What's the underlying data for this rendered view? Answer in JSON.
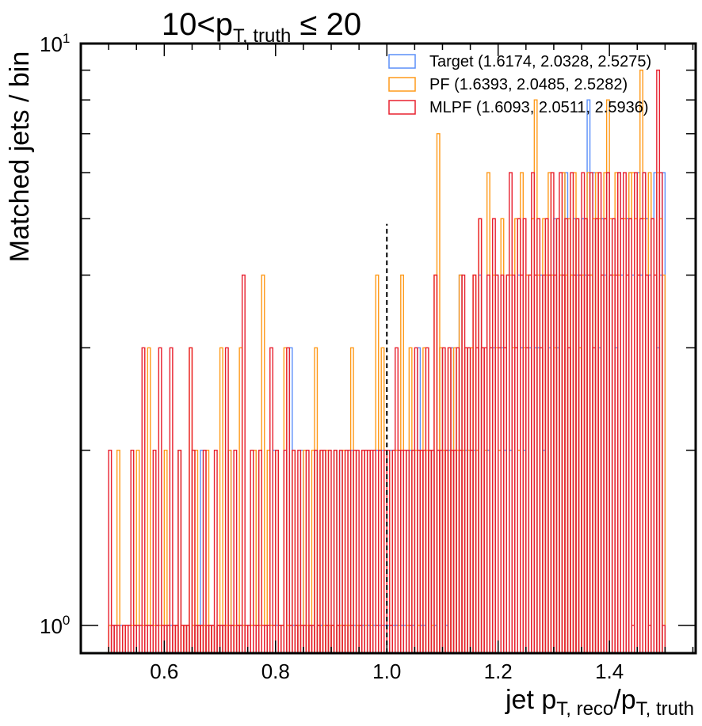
{
  "chart_data": {
    "type": "histogram-step",
    "title": {
      "prefix": "10<p",
      "sub": "T, truth",
      "suffix": " ≤ 20"
    },
    "xlabel": {
      "prefix": "jet p",
      "sub1": "T, reco",
      "mid": "/p",
      "sub2": "T, truth"
    },
    "ylabel": "Matched jets / bin",
    "xlim": [
      0.45,
      1.555
    ],
    "ylim": [
      0.896,
      10
    ],
    "yscale": "log",
    "x_ticks": [
      {
        "value": 0.6,
        "label": "0.6"
      },
      {
        "value": 0.8,
        "label": "0.8"
      },
      {
        "value": 1.0,
        "label": "1.0"
      },
      {
        "value": 1.2,
        "label": "1.2"
      },
      {
        "value": 1.4,
        "label": "1.4"
      }
    ],
    "y_ticks": [
      {
        "value": 1,
        "base": "10",
        "exp": "0"
      },
      {
        "value": 10,
        "base": "10",
        "exp": "1"
      }
    ],
    "reference_line": {
      "x": 1.0,
      "y_top": 4.9,
      "style": "dashed",
      "color": "#000000"
    },
    "bins": {
      "start": 0.5,
      "end": 1.5,
      "count": 200
    },
    "legend": {
      "placement": "top-right",
      "entries": [
        {
          "label": "Target (1.6174, 2.0328, 2.5275)",
          "color": "#5b8ff9"
        },
        {
          "label": "PF (1.6393, 2.0485, 2.5282)",
          "color": "#ff9a1a"
        },
        {
          "label": "MLPF (1.6093, 2.0511, 2.5936)",
          "color": "#e8202f"
        }
      ]
    },
    "series": [
      {
        "name": "Target",
        "color": "#5b8ff9",
        "counts": [
          0,
          1,
          1,
          0,
          1,
          0,
          0,
          1,
          0,
          1,
          1,
          0,
          1,
          0,
          1,
          1,
          0,
          1,
          1,
          0,
          1,
          1,
          1,
          0,
          1,
          2,
          0,
          1,
          1,
          0,
          1,
          1,
          1,
          2,
          1,
          0,
          1,
          1,
          0,
          1,
          1,
          1,
          0,
          2,
          1,
          0,
          1,
          1,
          1,
          0,
          1,
          1,
          2,
          1,
          1,
          0,
          1,
          1,
          1,
          2,
          1,
          1,
          0,
          2,
          1,
          3,
          1,
          1,
          1,
          2,
          1,
          0,
          1,
          1,
          2,
          1,
          1,
          2,
          1,
          1,
          1,
          2,
          1,
          2,
          1,
          1,
          1,
          2,
          1,
          1,
          0,
          1,
          2,
          1,
          1,
          1,
          2,
          1,
          2,
          1,
          1,
          2,
          1,
          1,
          2,
          1,
          1,
          2,
          2,
          1,
          2,
          3,
          1,
          1,
          2,
          2,
          2,
          1,
          2,
          3,
          2,
          1,
          2,
          3,
          2,
          2,
          4,
          2,
          2,
          3,
          2,
          2,
          2,
          4,
          3,
          2,
          2,
          3,
          3,
          4,
          2,
          3,
          2,
          4,
          2,
          3,
          3,
          4,
          3,
          2,
          4,
          3,
          5,
          3,
          3,
          4,
          2,
          4,
          3,
          4,
          5,
          3,
          4,
          4,
          6,
          3,
          4,
          5,
          4,
          3,
          5,
          4,
          8,
          4,
          6,
          5,
          3,
          5,
          4,
          6,
          4,
          5,
          3,
          6,
          4,
          5,
          5,
          6,
          4,
          5,
          6,
          4,
          6,
          5,
          4,
          5,
          6,
          3,
          4,
          6
        ]
      },
      {
        "name": "PF",
        "color": "#ff9a1a",
        "counts": [
          1,
          0,
          1,
          2,
          0,
          1,
          1,
          0,
          1,
          1,
          2,
          0,
          1,
          1,
          3,
          1,
          1,
          0,
          1,
          1,
          2,
          1,
          0,
          1,
          1,
          2,
          1,
          1,
          1,
          3,
          1,
          2,
          1,
          1,
          1,
          2,
          1,
          1,
          0,
          1,
          3,
          1,
          1,
          2,
          1,
          1,
          1,
          3,
          1,
          1,
          0,
          1,
          2,
          1,
          1,
          4,
          1,
          2,
          1,
          1,
          2,
          1,
          1,
          3,
          1,
          1,
          2,
          1,
          1,
          1,
          2,
          1,
          1,
          2,
          3,
          1,
          2,
          1,
          2,
          1,
          1,
          2,
          1,
          1,
          2,
          1,
          1,
          3,
          2,
          1,
          1,
          2,
          1,
          2,
          1,
          2,
          4,
          2,
          3,
          2,
          2,
          1,
          2,
          2,
          1,
          4,
          2,
          1,
          3,
          2,
          2,
          1,
          2,
          3,
          2,
          2,
          1,
          4,
          7,
          3,
          2,
          2,
          3,
          2,
          3,
          2,
          4,
          2,
          3,
          2,
          3,
          4,
          2,
          5,
          3,
          2,
          6,
          3,
          4,
          3,
          2,
          5,
          3,
          4,
          4,
          3,
          5,
          2,
          6,
          3,
          4,
          4,
          5,
          8,
          4,
          3,
          5,
          4,
          6,
          4,
          3,
          5,
          4,
          6,
          4,
          5,
          4,
          6,
          5,
          3,
          4,
          5,
          6,
          4,
          5,
          6,
          5,
          4,
          6,
          8,
          5,
          4,
          6,
          4,
          5,
          5,
          4,
          6,
          6,
          5,
          4,
          9,
          5,
          4,
          6,
          5,
          4,
          6,
          5,
          4
        ]
      },
      {
        "name": "MLPF",
        "color": "#e8202f",
        "counts": [
          2,
          1,
          1,
          1,
          0,
          1,
          1,
          1,
          2,
          1,
          1,
          1,
          3,
          1,
          1,
          1,
          2,
          1,
          3,
          1,
          1,
          1,
          3,
          1,
          1,
          2,
          1,
          1,
          1,
          3,
          2,
          1,
          1,
          1,
          2,
          1,
          1,
          1,
          2,
          1,
          1,
          1,
          3,
          1,
          1,
          2,
          1,
          1,
          4,
          1,
          1,
          2,
          1,
          1,
          2,
          1,
          1,
          1,
          3,
          1,
          2,
          1,
          1,
          2,
          3,
          1,
          2,
          1,
          2,
          1,
          1,
          2,
          1,
          1,
          2,
          1,
          2,
          2,
          1,
          2,
          1,
          2,
          1,
          2,
          1,
          2,
          2,
          1,
          2,
          2,
          1,
          2,
          2,
          2,
          2,
          2,
          1,
          2,
          1,
          2,
          2,
          1,
          2,
          3,
          2,
          2,
          2,
          2,
          1,
          2,
          3,
          2,
          2,
          2,
          3,
          2,
          2,
          4,
          2,
          2,
          3,
          2,
          3,
          2,
          2,
          3,
          2,
          4,
          3,
          3,
          2,
          4,
          3,
          5,
          3,
          3,
          4,
          3,
          5,
          4,
          3,
          4,
          3,
          4,
          6,
          4,
          3,
          5,
          4,
          5,
          3,
          4,
          6,
          4,
          5,
          3,
          4,
          5,
          4,
          6,
          4,
          5,
          6,
          4,
          5,
          3,
          6,
          4,
          5,
          4,
          6,
          5,
          4,
          6,
          3,
          5,
          6,
          4,
          5,
          6,
          4,
          5,
          4,
          6,
          5,
          6,
          4,
          5,
          1,
          6,
          4,
          5,
          6,
          4,
          1,
          5,
          4,
          9,
          6,
          1
        ]
      }
    ]
  }
}
